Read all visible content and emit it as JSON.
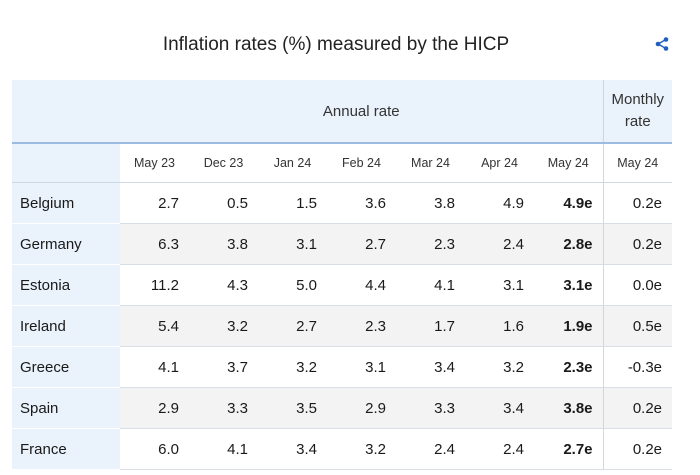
{
  "title": "Inflation rates (%) measured by the HICP",
  "share_icon": "share-icon",
  "header": {
    "annual_rate": "Annual rate",
    "monthly_rate": "Monthly rate",
    "columns": [
      "May 23",
      "Dec 23",
      "Jan 24",
      "Feb 24",
      "Mar 24",
      "Apr 24",
      "May 24",
      "May 24"
    ]
  },
  "rows": [
    {
      "country": "Belgium",
      "values": [
        "2.7",
        "0.5",
        "1.5",
        "3.6",
        "3.8",
        "4.9",
        "4.9e",
        "0.2e"
      ]
    },
    {
      "country": "Germany",
      "values": [
        "6.3",
        "3.8",
        "3.1",
        "2.7",
        "2.3",
        "2.4",
        "2.8e",
        "0.2e"
      ]
    },
    {
      "country": "Estonia",
      "values": [
        "11.2",
        "4.3",
        "5.0",
        "4.4",
        "4.1",
        "3.1",
        "3.1e",
        "0.0e"
      ]
    },
    {
      "country": "Ireland",
      "values": [
        "5.4",
        "3.2",
        "2.7",
        "2.3",
        "1.7",
        "1.6",
        "1.9e",
        "0.5e"
      ]
    },
    {
      "country": "Greece",
      "values": [
        "4.1",
        "3.7",
        "3.2",
        "3.1",
        "3.4",
        "3.2",
        "2.3e",
        "-0.3e"
      ]
    },
    {
      "country": "Spain",
      "values": [
        "2.9",
        "3.3",
        "3.5",
        "2.9",
        "3.3",
        "3.4",
        "3.8e",
        "0.2e"
      ]
    },
    {
      "country": "France",
      "values": [
        "6.0",
        "4.1",
        "3.4",
        "3.2",
        "2.4",
        "2.4",
        "2.7e",
        "0.2e"
      ]
    }
  ],
  "colors": {
    "accent": "#1f5fbf",
    "header_bg": "#eaf2fb",
    "alt_row_bg": "#f3f3f3"
  }
}
